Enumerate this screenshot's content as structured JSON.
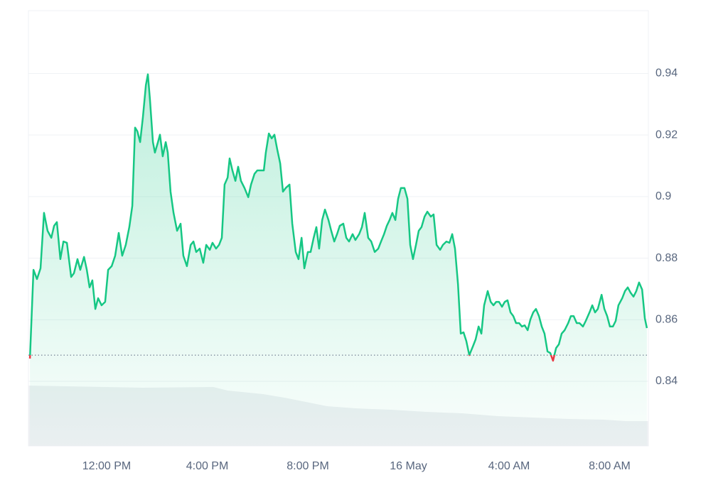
{
  "chart_data": {
    "type": "line",
    "color": "#16c784",
    "down_color": "#ea3943",
    "baseline": 0.8485,
    "grid": true,
    "xlim": [
      8.89,
      33.54
    ],
    "ylim": [
      0.819,
      0.9604
    ],
    "xticks": [
      {
        "value": 12,
        "label": "12:00 PM"
      },
      {
        "value": 16,
        "label": "4:00 PM"
      },
      {
        "value": 20,
        "label": "8:00 PM"
      },
      {
        "value": 24,
        "label": "16 May"
      },
      {
        "value": 28,
        "label": "4:00 AM"
      },
      {
        "value": 32,
        "label": "8:00 AM"
      }
    ],
    "yticks": [
      0.84,
      0.86,
      0.88,
      0.9,
      0.92,
      0.94
    ],
    "x": [
      8.95,
      9.09,
      9.23,
      9.37,
      9.51,
      9.65,
      9.8,
      9.91,
      10.02,
      10.16,
      10.28,
      10.42,
      10.59,
      10.7,
      10.84,
      10.95,
      11.1,
      11.21,
      11.32,
      11.43,
      11.55,
      11.66,
      11.8,
      11.94,
      12.06,
      12.2,
      12.34,
      12.48,
      12.62,
      12.76,
      12.9,
      13.02,
      13.13,
      13.22,
      13.33,
      13.44,
      13.56,
      13.64,
      13.72,
      13.84,
      13.92,
      14.04,
      14.12,
      14.23,
      14.35,
      14.43,
      14.54,
      14.66,
      14.8,
      14.94,
      15.05,
      15.19,
      15.34,
      15.45,
      15.56,
      15.7,
      15.84,
      15.96,
      16.1,
      16.21,
      16.35,
      16.47,
      16.58,
      16.69,
      16.81,
      16.89,
      17.0,
      17.12,
      17.23,
      17.34,
      17.48,
      17.63,
      17.74,
      17.88,
      17.99,
      18.25,
      18.33,
      18.45,
      18.56,
      18.67,
      18.78,
      18.9,
      19.01,
      19.12,
      19.27,
      19.38,
      19.52,
      19.63,
      19.75,
      19.86,
      20.0,
      20.11,
      20.23,
      20.34,
      20.45,
      20.57,
      20.68,
      20.82,
      20.93,
      21.05,
      21.16,
      21.27,
      21.41,
      21.53,
      21.64,
      21.78,
      21.89,
      22.04,
      22.15,
      22.26,
      22.4,
      22.52,
      22.66,
      22.8,
      22.91,
      23.03,
      23.14,
      23.25,
      23.36,
      23.48,
      23.59,
      23.7,
      23.84,
      23.96,
      24.07,
      24.18,
      24.3,
      24.41,
      24.52,
      24.64,
      24.75,
      24.89,
      25.0,
      25.12,
      25.26,
      25.37,
      25.51,
      25.63,
      25.74,
      25.85,
      25.97,
      26.08,
      26.19,
      26.3,
      26.42,
      26.56,
      26.67,
      26.79,
      26.9,
      27.01,
      27.15,
      27.27,
      27.38,
      27.49,
      27.6,
      27.72,
      27.83,
      27.94,
      28.06,
      28.17,
      28.28,
      28.4,
      28.51,
      28.62,
      28.74,
      28.85,
      28.96,
      29.07,
      29.19,
      29.3,
      29.41,
      29.53,
      29.64,
      29.75,
      29.87,
      29.98,
      30.09,
      30.21,
      30.35,
      30.46,
      30.57,
      30.69,
      30.8,
      30.94,
      31.05,
      31.2,
      31.31,
      31.42,
      31.53,
      31.68,
      31.79,
      31.9,
      32.01,
      32.13,
      32.24,
      32.35,
      32.5,
      32.61,
      32.72,
      32.83,
      32.95,
      33.06,
      33.17,
      33.29,
      33.4,
      33.48
    ],
    "values": [
      0.8474,
      0.8762,
      0.8732,
      0.8767,
      0.8947,
      0.8889,
      0.8866,
      0.8905,
      0.8917,
      0.8797,
      0.8854,
      0.885,
      0.8739,
      0.8751,
      0.8797,
      0.8762,
      0.8804,
      0.8762,
      0.8705,
      0.8728,
      0.8635,
      0.867,
      0.8647,
      0.8658,
      0.8762,
      0.8774,
      0.8808,
      0.8882,
      0.8808,
      0.8843,
      0.8901,
      0.897,
      0.9224,
      0.9212,
      0.9177,
      0.9258,
      0.9362,
      0.9397,
      0.9316,
      0.9177,
      0.9143,
      0.9177,
      0.9201,
      0.9131,
      0.9177,
      0.9143,
      0.9016,
      0.8947,
      0.8889,
      0.8912,
      0.8808,
      0.8774,
      0.8843,
      0.8854,
      0.882,
      0.8831,
      0.8785,
      0.8843,
      0.8827,
      0.885,
      0.8831,
      0.8843,
      0.8866,
      0.9039,
      0.9062,
      0.9124,
      0.9085,
      0.9051,
      0.9097,
      0.9051,
      0.9028,
      0.8998,
      0.9039,
      0.9074,
      0.9085,
      0.9085,
      0.9143,
      0.9205,
      0.9189,
      0.9201,
      0.9154,
      0.9108,
      0.9016,
      0.9028,
      0.9039,
      0.8912,
      0.882,
      0.8797,
      0.8866,
      0.8767,
      0.882,
      0.882,
      0.8866,
      0.8901,
      0.8831,
      0.8924,
      0.8958,
      0.8924,
      0.8889,
      0.8854,
      0.8878,
      0.8905,
      0.8912,
      0.8866,
      0.8854,
      0.8878,
      0.8859,
      0.8878,
      0.8901,
      0.8947,
      0.8866,
      0.8854,
      0.882,
      0.8831,
      0.8854,
      0.8878,
      0.8905,
      0.8924,
      0.8947,
      0.8924,
      0.8993,
      0.9028,
      0.9028,
      0.8993,
      0.8843,
      0.8797,
      0.8843,
      0.8889,
      0.8901,
      0.8935,
      0.8951,
      0.8935,
      0.8942,
      0.8843,
      0.8827,
      0.8843,
      0.8854,
      0.885,
      0.8878,
      0.8831,
      0.8716,
      0.8555,
      0.8559,
      0.8531,
      0.8485,
      0.8513,
      0.8536,
      0.8578,
      0.8555,
      0.8647,
      0.8693,
      0.8658,
      0.8647,
      0.8658,
      0.8658,
      0.8642,
      0.8658,
      0.8663,
      0.8624,
      0.8612,
      0.8589,
      0.8589,
      0.8578,
      0.8582,
      0.8566,
      0.8601,
      0.8624,
      0.8635,
      0.8612,
      0.8578,
      0.8555,
      0.8497,
      0.8492,
      0.8467,
      0.8508,
      0.852,
      0.8555,
      0.8566,
      0.8589,
      0.8612,
      0.8612,
      0.8589,
      0.8589,
      0.8578,
      0.8596,
      0.8624,
      0.8647,
      0.8624,
      0.8635,
      0.8681,
      0.8635,
      0.8612,
      0.8578,
      0.8578,
      0.8596,
      0.8647,
      0.867,
      0.8693,
      0.8705,
      0.8688,
      0.8675,
      0.8693,
      0.8721,
      0.8698,
      0.8605,
      0.8573
    ],
    "volume": {
      "color": "#eef0f3",
      "vlim": [
        0,
        100
      ],
      "x": [
        8.89,
        13.41,
        16.24,
        16.81,
        18.22,
        19.07,
        19.92,
        20.76,
        21.89,
        23.31,
        24.72,
        26.13,
        27.55,
        28.96,
        30.38,
        31.79,
        32.64,
        33.54
      ],
      "values": [
        85,
        82,
        83,
        78,
        73,
        68,
        62,
        56,
        53,
        51,
        48,
        46,
        42,
        40,
        38,
        37,
        35,
        35
      ]
    }
  }
}
